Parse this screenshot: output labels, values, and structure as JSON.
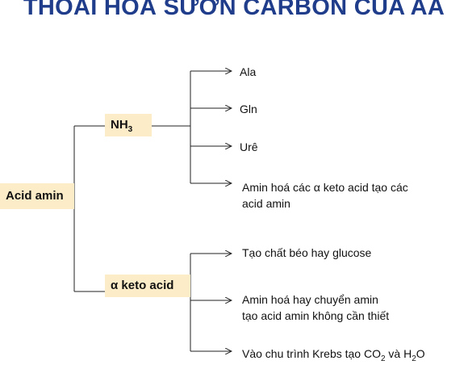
{
  "title": "THOÁI HOÁ SƯỜN CARBON CỦA AA",
  "root": "Acid amin",
  "nh3": {
    "base": "NH",
    "sub": "3"
  },
  "keto": "α keto acid",
  "nh3_products": {
    "ala": "Ala",
    "gln": "Gln",
    "ure": "Urê",
    "amination_line1": "Amin hoá các α keto acid tạo các",
    "amination_line2": "acid amin"
  },
  "keto_products": {
    "fat": "Tạo chất béo hay glucose",
    "trans_line1": "Amin hoá hay chuyển amin",
    "trans_line2": "tạo acid amin không cần thiết",
    "krebs_pre": "Vào chu trình Krebs tạo CO",
    "krebs_sub1": "2",
    "krebs_mid": " và H",
    "krebs_sub2": "2",
    "krebs_post": "O"
  }
}
